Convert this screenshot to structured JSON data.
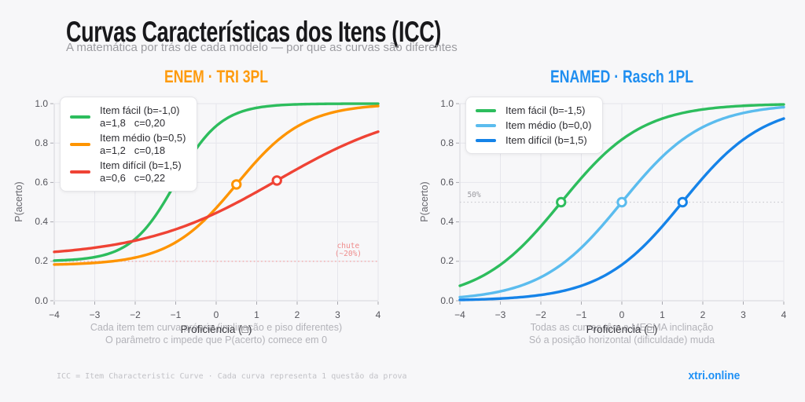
{
  "page": {
    "title": "Curvas Características dos Itens (ICC)",
    "subtitle": "A matemática por trás de cada modelo — por que as curvas são diferentes",
    "footer_note": "ICC = Item Characteristic Curve · Cada curva representa 1 questão da prova",
    "brand": "xtri.online"
  },
  "colors": {
    "background": "#f7f7f9",
    "grid": "#e6e6ec",
    "tick_text": "#55555c",
    "spine": "#d6d6dc",
    "tick_mark": "#a9a9b0",
    "caption_text": "#b3b3b9",
    "enem_accent": "#fe9b0e",
    "enamed_accent": "#1f8ef0",
    "brand_blue": "#1e90f5"
  },
  "chart_data": [
    {
      "type": "line",
      "model": "3PL",
      "title": "ENEM · TRI 3PL",
      "title_color": "#fe9b0e",
      "xlabel": "Proficiência (□)",
      "ylabel": "P(acerto)",
      "xlim": [
        -4,
        4
      ],
      "ylim": [
        0,
        1
      ],
      "grid": true,
      "legend_position": "upper left",
      "x_tick_values": [
        -4,
        -3,
        -2,
        -1,
        0,
        1,
        2,
        3,
        4
      ],
      "x_tick_labels": [
        "−4",
        "−3",
        "−2",
        "−1",
        "0",
        "1",
        "2",
        "3",
        "4"
      ],
      "y_tick_values": [
        0,
        0.2,
        0.4,
        0.6,
        0.8,
        1.0
      ],
      "y_tick_labels": [
        "0.0",
        "0.2",
        "0.4",
        "0.6",
        "0.8",
        "1.0"
      ],
      "series": [
        {
          "name": "Item fácil (b=-1,0)",
          "params": "a=1,8   c=0,20",
          "a": 1.8,
          "b": -1.0,
          "c": 0.2,
          "color": "#2dbd5d",
          "marker": {
            "x": -1.0,
            "y": 0.6
          }
        },
        {
          "name": "Item médio (b=0,5)",
          "params": "a=1,2   c=0,18",
          "a": 1.2,
          "b": 0.5,
          "c": 0.18,
          "color": "#fe9400",
          "marker": {
            "x": 0.5,
            "y": 0.59
          }
        },
        {
          "name": "Item difícil (b=1,5)",
          "params": "a=0,6   c=0,22",
          "a": 0.6,
          "b": 1.5,
          "c": 0.22,
          "color": "#ef4335",
          "marker": {
            "x": 1.5,
            "y": 0.61
          }
        }
      ],
      "guide": {
        "y": 0.2,
        "line_color": "#f4a6a6",
        "label_lines": [
          "chute",
          "(~20%)"
        ],
        "label_color": "#ef8b8b",
        "anchor_x": 3.26
      },
      "caption": [
        "Cada item tem curva própria (inclinação e piso diferentes)",
        "O parâmetro c impede que P(acerto) comece em 0"
      ]
    },
    {
      "type": "line",
      "model": "1PL",
      "title": "ENAMED · Rasch 1PL",
      "title_color": "#1f8ef0",
      "xlabel": "Proficiência (□)",
      "ylabel": "P(acerto)",
      "xlim": [
        -4,
        4
      ],
      "ylim": [
        0,
        1
      ],
      "grid": true,
      "legend_position": "upper left",
      "x_tick_values": [
        -4,
        -3,
        -2,
        -1,
        0,
        1,
        2,
        3,
        4
      ],
      "x_tick_labels": [
        "−4",
        "−3",
        "−2",
        "−1",
        "0",
        "1",
        "2",
        "3",
        "4"
      ],
      "y_tick_values": [
        0,
        0.2,
        0.4,
        0.6,
        0.8,
        1.0
      ],
      "y_tick_labels": [
        "0.0",
        "0.2",
        "0.4",
        "0.6",
        "0.8",
        "1.0"
      ],
      "series": [
        {
          "name": "Item fácil (b=-1,5)",
          "a": 1.0,
          "b": -1.5,
          "color": "#2dbd5d",
          "marker": {
            "x": -1.5,
            "y": 0.5
          }
        },
        {
          "name": "Item médio (b=0,0)",
          "a": 1.0,
          "b": 0.0,
          "color": "#5bbcee",
          "marker": {
            "x": 0.0,
            "y": 0.5
          }
        },
        {
          "name": "Item difícil (b=1,5)",
          "a": 1.0,
          "b": 1.5,
          "color": "#1583e8",
          "marker": {
            "x": 1.5,
            "y": 0.5
          }
        }
      ],
      "guide": {
        "y": 0.5,
        "line_color": "#c9c9cf",
        "label_lines": [
          "50%"
        ],
        "label_color": "#9a9aa0",
        "anchor_x": -3.65
      },
      "caption": [
        "Todas as curvas têm a MESMA inclinação",
        "Só a posição horizontal (dificuldade) muda"
      ]
    }
  ]
}
